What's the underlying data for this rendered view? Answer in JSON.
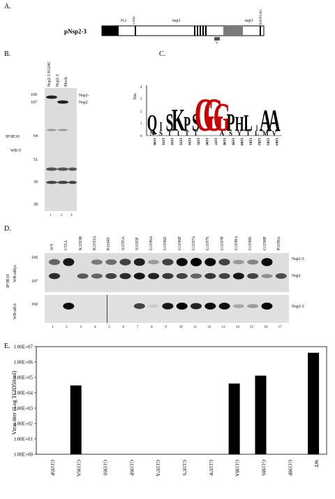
{
  "panelA": {
    "letter": "A.",
    "construct": "pNsp2-3",
    "domains": [
      "PL2",
      "c-myc",
      "nsp2",
      "nsp3",
      "HA/FLAG"
    ],
    "v_label": "V"
  },
  "panelB": {
    "letter": "B.",
    "lanes": [
      "Nsp2-3 H124C",
      "Nsp2-3",
      "Mock"
    ],
    "markers": [
      "160",
      "107",
      "64",
      "51",
      "39",
      "28"
    ],
    "bands": [
      "Nsp2-",
      "Nsp2"
    ],
    "ip": "IP:9E10",
    "wb": "WB:V",
    "lane_numbers": [
      "1",
      "2",
      "3"
    ]
  },
  "panelC": {
    "letter": "C.",
    "ylabel": "bits",
    "y_ticks": [
      "4",
      "3",
      "2",
      "1",
      "0"
    ],
    "positions": [
      "1190",
      "1191",
      "1192",
      "1193",
      "1194",
      "1195",
      "1196",
      "1197",
      "1198",
      "1199",
      "1200",
      "1201",
      "1202",
      "1203",
      "1204"
    ],
    "logo_top": [
      "Q",
      "I",
      "S",
      "K",
      "P",
      "S",
      "G",
      "G",
      "G",
      "P",
      "H",
      "L",
      "I",
      "A",
      "A"
    ],
    "logo_bottom": [
      "N",
      "S",
      "T",
      "I",
      "T",
      "T",
      "",
      "",
      "A",
      "S",
      "Y",
      "T",
      "L",
      "M",
      "V"
    ]
  },
  "panelD": {
    "letter": "D.",
    "lanes": [
      "WT",
      "C55A",
      "K1193R",
      "K1193A",
      "P1194T",
      "S1195A",
      "S1195P",
      "G1196A",
      "G1196S",
      "G1196P",
      "G1197A",
      "G1197S",
      "G1197P",
      "G1198A",
      "G1198S",
      "G1198P",
      "P1199A"
    ],
    "lane_numbers": [
      "1",
      "2",
      "3",
      "4",
      "5",
      "6",
      "7",
      "8",
      "9",
      "10",
      "11",
      "12",
      "13",
      "14",
      "15",
      "16",
      "17"
    ],
    "ip": "IP:9E10",
    "wb_top": "WB:αMyc",
    "wb_bottom": "WB:αHA",
    "markers_top": [
      "160",
      "107"
    ],
    "markers_bottom": [
      "160"
    ],
    "bands_top": [
      "Nsp2-3",
      "Nsp2"
    ],
    "bands_bottom": [
      "Nsp2-3"
    ],
    "nsp23_fraction": [
      0.55,
      0.9,
      0,
      0.45,
      0.5,
      0.7,
      0.85,
      0.3,
      0.7,
      0.95,
      1,
      0.95,
      0.7,
      0.3,
      0.4,
      0.95,
      0
    ],
    "nsp2_fraction": [
      0.8,
      0,
      0.6,
      0.55,
      0.7,
      0.8,
      0.9,
      0.85,
      0.75,
      0.7,
      0.55,
      0.75,
      0.7,
      0.9,
      0.7,
      0.35,
      0.65
    ],
    "ha_fraction": [
      0,
      0.95,
      0,
      0,
      0,
      0,
      0.7,
      0.1,
      0.9,
      1,
      0.85,
      0.95,
      0.95,
      0.25,
      0.3,
      1,
      0
    ]
  },
  "panelE": {
    "letter": "E.",
    "chart_data": {
      "type": "bar",
      "ylabel": "Virus titer (Log TCID50/ml)",
      "y_scale": "log",
      "ylim": [
        1,
        10000000
      ],
      "y_ticks": [
        "1.00E+07",
        "1.00E+06",
        "1.00E+05",
        "1.00E+04",
        "1.00E+03",
        "1.00E+02",
        "1.00E+01",
        "1.00E+00"
      ],
      "categories": [
        "G1195P",
        "G1196A",
        "G1196S",
        "G1196P",
        "G1197A",
        "G1197S",
        "G1197P",
        "G1198A",
        "G1198S",
        "G1198P",
        "WT"
      ],
      "values": [
        1,
        30000,
        1,
        1,
        1,
        1,
        1,
        40000,
        130000,
        1,
        4000000
      ],
      "bar_color": "#000000"
    }
  }
}
